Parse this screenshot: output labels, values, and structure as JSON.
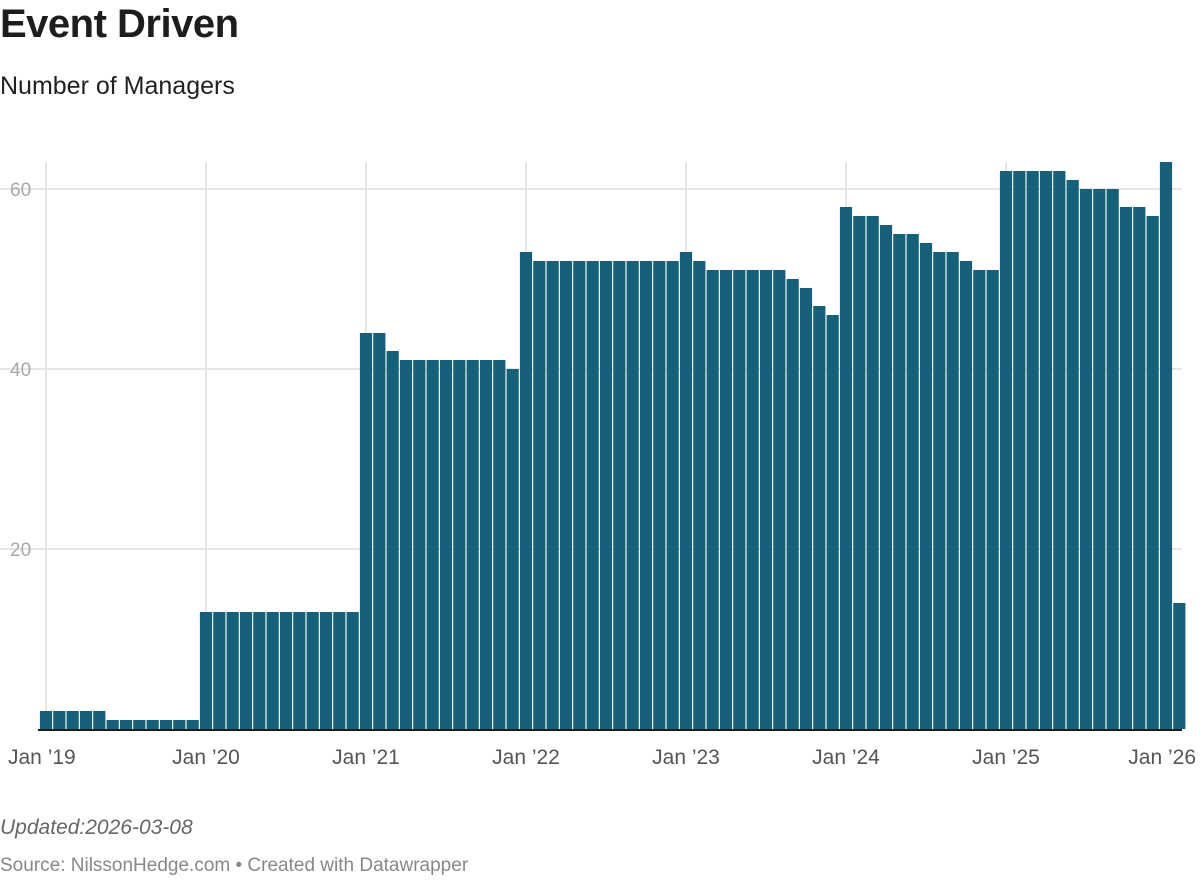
{
  "header": {
    "title": "Event Driven",
    "subtitle": "Number of Managers"
  },
  "footer": {
    "updated": "Updated:2026-03-08",
    "source": "Source: NilssonHedge.com • Created with Datawrapper"
  },
  "chart_data": {
    "type": "bar",
    "title": "Event Driven",
    "subtitle": "Number of Managers",
    "xlabel": "",
    "ylabel": "",
    "ylim": [
      0,
      63
    ],
    "grid": true,
    "bar_color": "#17607a",
    "y_ticks": [
      20,
      40,
      60
    ],
    "x_ticks": [
      "Jan ’19",
      "Jan ’20",
      "Jan ’21",
      "Jan ’22",
      "Jan ’23",
      "Jan ’24",
      "Jan ’25",
      "Jan ’26"
    ],
    "start": "2019-01",
    "frequency": "monthly",
    "values": [
      2,
      2,
      2,
      2,
      2,
      1,
      1,
      1,
      1,
      1,
      1,
      1,
      13,
      13,
      13,
      13,
      13,
      13,
      13,
      13,
      13,
      13,
      13,
      13,
      44,
      44,
      42,
      41,
      41,
      41,
      41,
      41,
      41,
      41,
      41,
      40,
      53,
      52,
      52,
      52,
      52,
      52,
      52,
      52,
      52,
      52,
      52,
      52,
      53,
      52,
      51,
      51,
      51,
      51,
      51,
      51,
      50,
      49,
      47,
      46,
      58,
      57,
      57,
      56,
      55,
      55,
      54,
      53,
      53,
      52,
      51,
      51,
      62,
      62,
      62,
      62,
      62,
      61,
      60,
      60,
      60,
      58,
      58,
      57,
      63,
      14
    ]
  }
}
